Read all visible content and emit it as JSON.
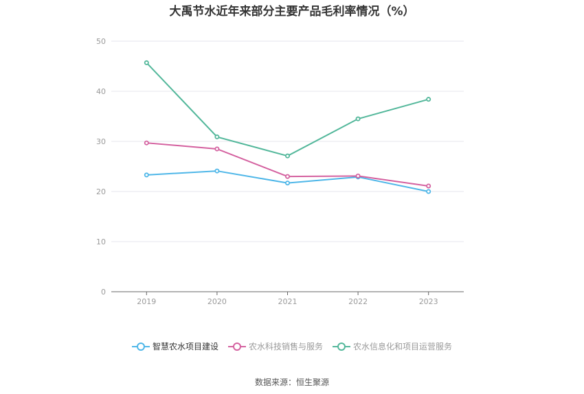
{
  "chart_data": {
    "type": "line",
    "title": "大禹节水近年来部分主要产品毛利率情况（%）",
    "x": [
      "2019",
      "2020",
      "2021",
      "2022",
      "2023"
    ],
    "ylim": [
      0,
      50
    ],
    "yticks": [
      "0",
      "10",
      "20",
      "30",
      "40",
      "50"
    ],
    "grid": true,
    "legend_position": "bottom",
    "series": [
      {
        "name": "智慧农水项目建设",
        "color": "#4db6e8",
        "values": [
          23.3,
          24.1,
          21.7,
          22.9,
          20.0
        ]
      },
      {
        "name": "农水科技销售与服务",
        "color": "#d4609f",
        "values": [
          29.7,
          28.5,
          23.0,
          23.1,
          21.1
        ]
      },
      {
        "name": "农水信息化和项目运营服务",
        "color": "#52b79a",
        "values": [
          45.7,
          30.9,
          27.1,
          34.5,
          38.4
        ]
      }
    ]
  },
  "legend_text_colors": [
    "#333333",
    "#999999",
    "#999999"
  ],
  "source_text": "数据来源：恒生聚源"
}
